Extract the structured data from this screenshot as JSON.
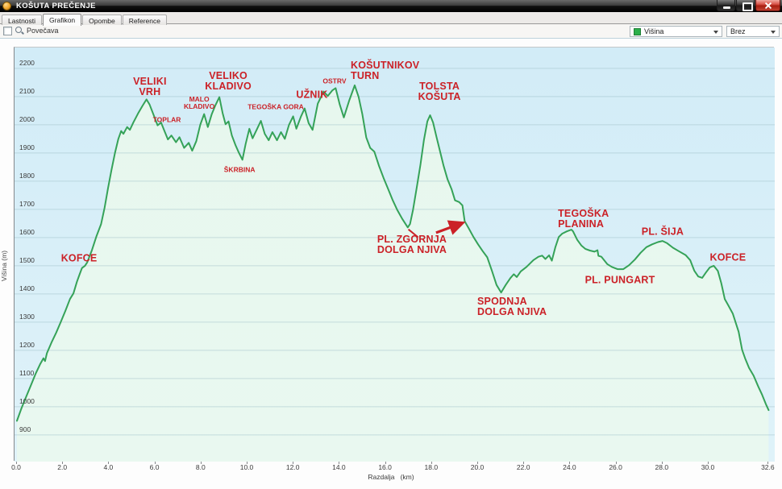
{
  "window": {
    "title": "KOŠUTA PREČENJE"
  },
  "tabs": [
    {
      "label": "Lastnosti",
      "active": false
    },
    {
      "label": "Grafikon",
      "active": true
    },
    {
      "label": "Opombe",
      "active": false
    },
    {
      "label": "Reference",
      "active": false
    }
  ],
  "toolbar": {
    "zoom_checkbox_label": "Povečava",
    "zoom_checked": false,
    "series_dropdown": {
      "value": "Višina",
      "swatch_color": "#2cb04b"
    },
    "overlay_dropdown": {
      "value": "Brez"
    }
  },
  "colors": {
    "line": "#35a258",
    "fill_top": "#e7f7ee",
    "fill_bottom": "#e9f8f0",
    "plot_bg_top": "#d2ecf7",
    "plot_bg_bottom": "#dff2f9",
    "grid": "#9dbfc8",
    "annotation_red": "#cb2127",
    "axis_text": "#3a3a3a"
  },
  "chart_data": {
    "type": "area",
    "title": "",
    "xlabel": "Razdalja   (km)",
    "ylabel": "Višina (m)",
    "xlim": [
      0,
      32.6
    ],
    "ylim": [
      900,
      2200
    ],
    "grid": "horizontal-only",
    "x_tick_values": [
      0,
      2,
      4,
      6,
      8,
      10,
      12,
      14,
      16,
      18,
      20,
      22,
      24,
      26,
      28,
      30,
      32.6
    ],
    "x_tick_labels": [
      "0.0",
      "2.0",
      "4.0",
      "6.0",
      "8.0",
      "10.0",
      "12.0",
      "14.0",
      "16.0",
      "18.0",
      "20.0",
      "22.0",
      "24.0",
      "26.0",
      "28.0",
      "30.0",
      "32.6"
    ],
    "y_tick_values": [
      900,
      1000,
      1100,
      1200,
      1300,
      1400,
      1500,
      1600,
      1700,
      1800,
      1900,
      2000,
      2100,
      2200
    ],
    "series": [
      {
        "name": "Višina",
        "points": [
          [
            0,
            950
          ],
          [
            0.2,
            995
          ],
          [
            0.4,
            1035
          ],
          [
            0.6,
            1075
          ],
          [
            0.8,
            1115
          ],
          [
            1.0,
            1150
          ],
          [
            1.15,
            1172
          ],
          [
            1.22,
            1162
          ],
          [
            1.3,
            1190
          ],
          [
            1.5,
            1228
          ],
          [
            1.7,
            1262
          ],
          [
            1.9,
            1300
          ],
          [
            2.1,
            1340
          ],
          [
            2.3,
            1382
          ],
          [
            2.45,
            1402
          ],
          [
            2.6,
            1443
          ],
          [
            2.72,
            1470
          ],
          [
            2.82,
            1492
          ],
          [
            2.95,
            1500
          ],
          [
            3.05,
            1512
          ],
          [
            3.25,
            1555
          ],
          [
            3.45,
            1605
          ],
          [
            3.65,
            1648
          ],
          [
            3.8,
            1705
          ],
          [
            3.95,
            1775
          ],
          [
            4.1,
            1840
          ],
          [
            4.25,
            1900
          ],
          [
            4.4,
            1950
          ],
          [
            4.52,
            1978
          ],
          [
            4.62,
            1968
          ],
          [
            4.78,
            1992
          ],
          [
            4.9,
            1982
          ],
          [
            5.05,
            2008
          ],
          [
            5.25,
            2040
          ],
          [
            5.45,
            2068
          ],
          [
            5.62,
            2090
          ],
          [
            5.75,
            2072
          ],
          [
            5.95,
            2030
          ],
          [
            6.1,
            1998
          ],
          [
            6.25,
            2008
          ],
          [
            6.4,
            1978
          ],
          [
            6.55,
            1948
          ],
          [
            6.7,
            1962
          ],
          [
            6.9,
            1938
          ],
          [
            7.05,
            1956
          ],
          [
            7.25,
            1918
          ],
          [
            7.45,
            1936
          ],
          [
            7.6,
            1908
          ],
          [
            7.78,
            1942
          ],
          [
            7.95,
            2000
          ],
          [
            8.12,
            2038
          ],
          [
            8.28,
            1992
          ],
          [
            8.45,
            2038
          ],
          [
            8.6,
            2068
          ],
          [
            8.78,
            2098
          ],
          [
            8.92,
            2042
          ],
          [
            9.05,
            2002
          ],
          [
            9.18,
            2012
          ],
          [
            9.32,
            1962
          ],
          [
            9.48,
            1928
          ],
          [
            9.62,
            1902
          ],
          [
            9.78,
            1876
          ],
          [
            9.92,
            1932
          ],
          [
            10.08,
            1986
          ],
          [
            10.22,
            1952
          ],
          [
            10.42,
            1986
          ],
          [
            10.58,
            2014
          ],
          [
            10.75,
            1968
          ],
          [
            10.92,
            1945
          ],
          [
            11.08,
            1974
          ],
          [
            11.28,
            1945
          ],
          [
            11.45,
            1974
          ],
          [
            11.62,
            1950
          ],
          [
            11.8,
            2000
          ],
          [
            11.98,
            2030
          ],
          [
            12.12,
            1986
          ],
          [
            12.32,
            2030
          ],
          [
            12.48,
            2058
          ],
          [
            12.65,
            2006
          ],
          [
            12.82,
            1982
          ],
          [
            13.05,
            2075
          ],
          [
            13.3,
            2118
          ],
          [
            13.48,
            2102
          ],
          [
            13.68,
            2122
          ],
          [
            13.82,
            2130
          ],
          [
            14.0,
            2072
          ],
          [
            14.18,
            2026
          ],
          [
            14.42,
            2088
          ],
          [
            14.65,
            2140
          ],
          [
            14.82,
            2098
          ],
          [
            14.98,
            2038
          ],
          [
            15.15,
            1955
          ],
          [
            15.32,
            1918
          ],
          [
            15.5,
            1905
          ],
          [
            15.7,
            1855
          ],
          [
            15.9,
            1812
          ],
          [
            16.1,
            1772
          ],
          [
            16.3,
            1732
          ],
          [
            16.5,
            1697
          ],
          [
            16.72,
            1665
          ],
          [
            16.95,
            1636
          ],
          [
            17.05,
            1648
          ],
          [
            17.18,
            1698
          ],
          [
            17.35,
            1782
          ],
          [
            17.5,
            1858
          ],
          [
            17.65,
            1945
          ],
          [
            17.8,
            2012
          ],
          [
            17.92,
            2034
          ],
          [
            18.05,
            2008
          ],
          [
            18.2,
            1956
          ],
          [
            18.35,
            1906
          ],
          [
            18.5,
            1856
          ],
          [
            18.68,
            1806
          ],
          [
            18.85,
            1772
          ],
          [
            19.0,
            1732
          ],
          [
            19.18,
            1726
          ],
          [
            19.32,
            1714
          ],
          [
            19.42,
            1658
          ],
          [
            19.6,
            1632
          ],
          [
            19.8,
            1602
          ],
          [
            20.0,
            1576
          ],
          [
            20.2,
            1552
          ],
          [
            20.4,
            1530
          ],
          [
            20.6,
            1482
          ],
          [
            20.8,
            1432
          ],
          [
            21.0,
            1405
          ],
          [
            21.2,
            1432
          ],
          [
            21.4,
            1456
          ],
          [
            21.55,
            1470
          ],
          [
            21.68,
            1460
          ],
          [
            21.85,
            1480
          ],
          [
            22.1,
            1496
          ],
          [
            22.4,
            1520
          ],
          [
            22.62,
            1532
          ],
          [
            22.78,
            1536
          ],
          [
            22.92,
            1524
          ],
          [
            23.08,
            1537
          ],
          [
            23.2,
            1518
          ],
          [
            23.35,
            1565
          ],
          [
            23.5,
            1602
          ],
          [
            23.65,
            1614
          ],
          [
            23.85,
            1622
          ],
          [
            24.05,
            1628
          ],
          [
            24.12,
            1622
          ],
          [
            24.3,
            1592
          ],
          [
            24.48,
            1572
          ],
          [
            24.65,
            1560
          ],
          [
            24.85,
            1554
          ],
          [
            25.05,
            1550
          ],
          [
            25.18,
            1555
          ],
          [
            25.22,
            1535
          ],
          [
            25.35,
            1532
          ],
          [
            25.6,
            1506
          ],
          [
            25.8,
            1496
          ],
          [
            26.05,
            1488
          ],
          [
            26.3,
            1488
          ],
          [
            26.55,
            1502
          ],
          [
            26.8,
            1522
          ],
          [
            27.05,
            1546
          ],
          [
            27.3,
            1566
          ],
          [
            27.55,
            1576
          ],
          [
            27.8,
            1584
          ],
          [
            28.0,
            1588
          ],
          [
            28.2,
            1580
          ],
          [
            28.45,
            1564
          ],
          [
            28.7,
            1552
          ],
          [
            29.0,
            1538
          ],
          [
            29.2,
            1520
          ],
          [
            29.38,
            1482
          ],
          [
            29.55,
            1462
          ],
          [
            29.72,
            1457
          ],
          [
            29.88,
            1476
          ],
          [
            30.05,
            1494
          ],
          [
            30.22,
            1500
          ],
          [
            30.4,
            1482
          ],
          [
            30.55,
            1438
          ],
          [
            30.7,
            1382
          ],
          [
            30.85,
            1360
          ],
          [
            31.05,
            1330
          ],
          [
            31.3,
            1266
          ],
          [
            31.45,
            1202
          ],
          [
            31.58,
            1172
          ],
          [
            31.75,
            1138
          ],
          [
            31.95,
            1110
          ],
          [
            32.15,
            1072
          ],
          [
            32.32,
            1042
          ],
          [
            32.48,
            1010
          ],
          [
            32.6,
            988
          ]
        ]
      }
    ],
    "annotations": {
      "major": [
        {
          "lines": [
            "KOFCE"
          ],
          "km": 2.73,
          "m": 1523,
          "align": "center"
        },
        {
          "lines": [
            "VELIKI",
            "VRH"
          ],
          "km": 5.8,
          "m": 2131,
          "align": "center"
        },
        {
          "lines": [
            "VELIKO",
            "KLADIVO"
          ],
          "km": 9.2,
          "m": 2151,
          "align": "center"
        },
        {
          "lines": [
            "UŽNIK"
          ],
          "km": 12.83,
          "m": 2103,
          "align": "center"
        },
        {
          "lines": [
            "KOŠUTNIKOV",
            "TURN"
          ],
          "km": 14.51,
          "m": 2189,
          "align": "left"
        },
        {
          "lines": [
            "TOLSTA",
            "KOŠUTA"
          ],
          "km": 18.36,
          "m": 2114,
          "align": "center"
        },
        {
          "lines": [
            "PL. ZGORNJA",
            "DOLGA NJIVA"
          ],
          "km": 15.66,
          "m": 1571,
          "align": "left"
        },
        {
          "lines": [
            "SPODNJA",
            "DOLGA NJIVA"
          ],
          "km": 20.0,
          "m": 1351,
          "align": "left"
        },
        {
          "lines": [
            "TEGOŠKA",
            "PLANINA"
          ],
          "km": 23.5,
          "m": 1663,
          "align": "left"
        },
        {
          "lines": [
            "PL. PUNGART"
          ],
          "km": 26.19,
          "m": 1446,
          "align": "center"
        },
        {
          "lines": [
            "PL. ŠIJA"
          ],
          "km": 28.04,
          "m": 1617,
          "align": "center"
        },
        {
          "lines": [
            "KOFCE"
          ],
          "km": 30.87,
          "m": 1526,
          "align": "center"
        }
      ],
      "minor": [
        {
          "lines": [
            "TOPLAR"
          ],
          "km": 6.54,
          "m": 2014,
          "align": "center"
        },
        {
          "lines": [
            "MALO",
            "KLADIVO"
          ],
          "km": 7.94,
          "m": 2074,
          "align": "center"
        },
        {
          "lines": [
            "ŠKRBINA"
          ],
          "km": 9.69,
          "m": 1837,
          "align": "center"
        },
        {
          "lines": [
            "TEGOŠKA GORA"
          ],
          "km": 11.26,
          "m": 2060,
          "align": "center"
        },
        {
          "lines": [
            "OSTRV"
          ],
          "km": 13.81,
          "m": 2151,
          "align": "center"
        }
      ],
      "arrows": [
        {
          "from": [
            18.18,
            1617
          ],
          "to": [
            19.3,
            1651
          ],
          "head": true,
          "width": 3.2
        },
        {
          "from": [
            17.4,
            1601
          ],
          "to": [
            16.98,
            1629
          ],
          "head": false,
          "width": 2
        }
      ]
    }
  }
}
